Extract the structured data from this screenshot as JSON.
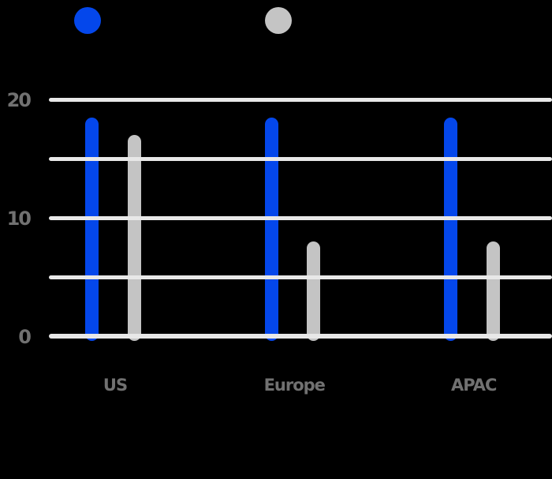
{
  "chart_data": {
    "type": "bar",
    "title": "",
    "categories": [
      "US",
      "Europe",
      "APAC"
    ],
    "series": [
      {
        "name": "blue-series",
        "color": "#0447eb",
        "values": [
          18.5,
          18.5,
          18.5
        ]
      },
      {
        "name": "gray-series",
        "color": "#c4c4c4",
        "values": [
          17,
          8,
          8
        ]
      }
    ],
    "xlabel": "",
    "ylabel": "",
    "ylim": [
      0,
      20
    ],
    "yticks": [
      {
        "value": 0,
        "label": "0"
      },
      {
        "value": 10,
        "label": "10"
      },
      {
        "value": 20,
        "label": "20"
      }
    ],
    "gridline_values": [
      0,
      5,
      10,
      15,
      20
    ],
    "grid": "horizontal",
    "legend_position": "top",
    "legend": [
      {
        "swatch": "circle",
        "color": "#0447eb",
        "label": ""
      },
      {
        "swatch": "circle",
        "color": "#c4c4c4",
        "label": ""
      }
    ]
  },
  "colors": {
    "background": "#000000",
    "gridline": "#e8e8e8",
    "axis_label": "#717171",
    "blue_series": "#0447eb",
    "gray_series": "#c4c4c4"
  }
}
